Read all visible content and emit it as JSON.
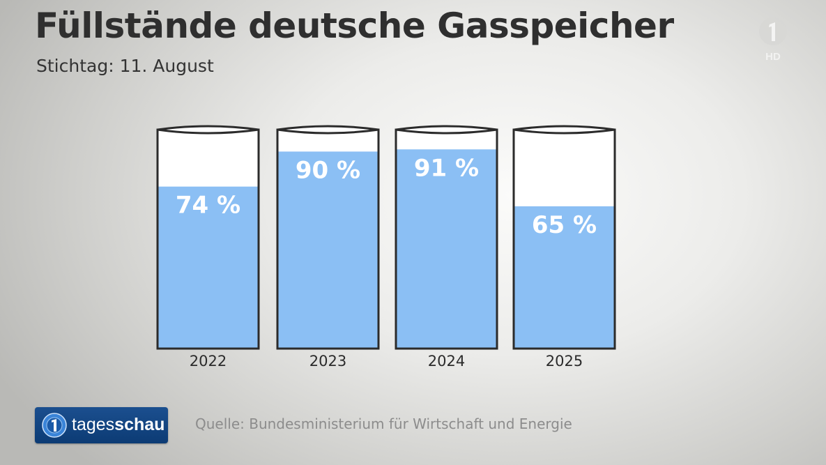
{
  "title": "Füllstände deutsche Gasspeicher",
  "subtitle": "Stichtag: 11. August",
  "channel": {
    "logo_icon": "ard-one-icon",
    "badge": "HD"
  },
  "brand": {
    "icon": "tagesschau-globe-icon",
    "name_regular": "tages",
    "name_bold": "schau"
  },
  "source": "Quelle: Bundesministerium für Wirtschaft und Energie",
  "colors": {
    "fill": "#8bbff4",
    "outline": "#2b2b2b",
    "empty": "#ffffff",
    "label": "#ffffff"
  },
  "chart_data": {
    "type": "bar",
    "categories": [
      "2022",
      "2023",
      "2024",
      "2025"
    ],
    "values": [
      74,
      90,
      91,
      65
    ],
    "value_labels": [
      "74 %",
      "90 %",
      "91 %",
      "65 %"
    ],
    "ylim": [
      0,
      100
    ],
    "title": "Füllstände deutsche Gasspeicher",
    "subtitle": "Stichtag: 11. August",
    "grid": false,
    "legend": "none"
  }
}
